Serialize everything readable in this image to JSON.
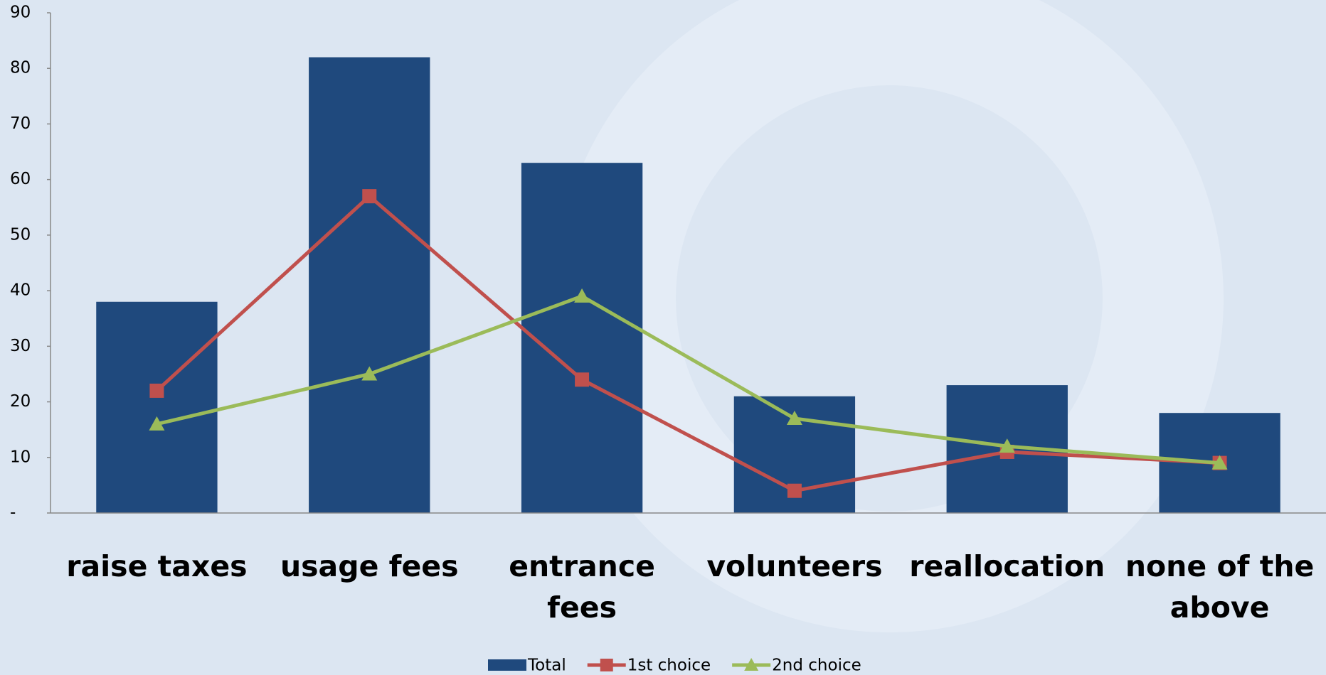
{
  "chart_data": {
    "type": "bar_line",
    "categories": [
      "raise taxes",
      "usage fees",
      "entrance fees",
      "volunteers",
      "reallocation",
      "none of the above"
    ],
    "series": [
      {
        "name": "Total",
        "type": "bar",
        "color": "#1f497d",
        "values": [
          38,
          82,
          63,
          21,
          23,
          18
        ]
      },
      {
        "name": "1st choice",
        "type": "line",
        "marker": "square",
        "color": "#c0504d",
        "values": [
          22,
          57,
          24,
          4,
          11,
          9
        ]
      },
      {
        "name": "2nd choice",
        "type": "line",
        "marker": "triangle",
        "color": "#9bbb59",
        "values": [
          16,
          25,
          39,
          17,
          12,
          9
        ]
      }
    ],
    "ylim": [
      0,
      90
    ],
    "yticks": [
      {
        "value": 0,
        "label": "-"
      },
      10,
      20,
      30,
      40,
      50,
      60,
      70,
      80,
      90
    ],
    "legend": "bottom"
  }
}
